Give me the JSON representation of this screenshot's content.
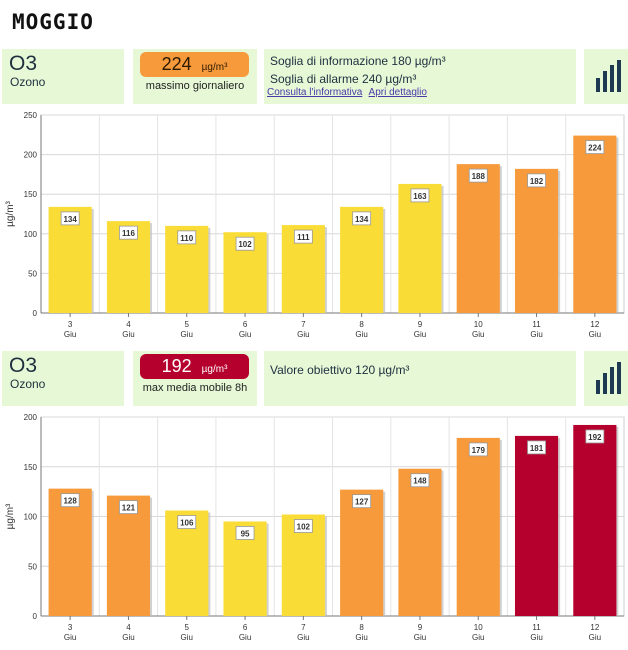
{
  "city": "MOGGIO",
  "colors": {
    "panel": "#e6f8d6",
    "yellow": "#fadc36",
    "orange": "#f79a3c",
    "red": "#b5002d",
    "icon_bars": "#1e3a52"
  },
  "section1": {
    "pollutant_code": "O3",
    "pollutant_name": "Ozono",
    "value": "224",
    "unit": "µg/m³",
    "value_label": "massimo giornaliero",
    "badge_color": "orange",
    "info_line1": "Soglia di informazione 180 µg/m³",
    "info_line2": "Soglia di allarme 240 µg/m³",
    "link1": "Consulta l'informativa",
    "link2": "Apri dettaglio",
    "icon": "bar-chart-icon"
  },
  "section2": {
    "pollutant_code": "O3",
    "pollutant_name": "Ozono",
    "value": "192",
    "unit": "µg/m³",
    "value_label": "max media mobile 8h",
    "badge_color": "red",
    "info_line1": "Valore obiettivo 120 µg/m³",
    "icon": "bar-chart-icon"
  },
  "chart_data": [
    {
      "type": "bar",
      "categories": [
        "3 Giu",
        "4 Giu",
        "5 Giu",
        "6 Giu",
        "7 Giu",
        "8 Giu",
        "9 Giu",
        "10 Giu",
        "11 Giu",
        "12 Giu"
      ],
      "values": [
        134,
        116,
        110,
        102,
        111,
        134,
        163,
        188,
        182,
        224
      ],
      "bar_colors": [
        "yellow",
        "yellow",
        "yellow",
        "yellow",
        "yellow",
        "yellow",
        "yellow",
        "orange",
        "orange",
        "orange"
      ],
      "ylabel": "µg/m³",
      "ylim": [
        0,
        250
      ],
      "yticks": [
        0,
        50,
        100,
        150,
        200,
        250
      ],
      "grid": true
    },
    {
      "type": "bar",
      "categories": [
        "3 Giu",
        "4 Giu",
        "5 Giu",
        "6 Giu",
        "7 Giu",
        "8 Giu",
        "9 Giu",
        "10 Giu",
        "11 Giu",
        "12 Giu"
      ],
      "values": [
        128,
        121,
        106,
        95,
        102,
        127,
        148,
        179,
        181,
        192
      ],
      "bar_colors": [
        "orange",
        "orange",
        "yellow",
        "yellow",
        "yellow",
        "orange",
        "orange",
        "orange",
        "red",
        "red"
      ],
      "ylabel": "µg/m³",
      "ylim": [
        0,
        200
      ],
      "yticks": [
        0,
        50,
        100,
        150,
        200
      ],
      "grid": true
    }
  ]
}
